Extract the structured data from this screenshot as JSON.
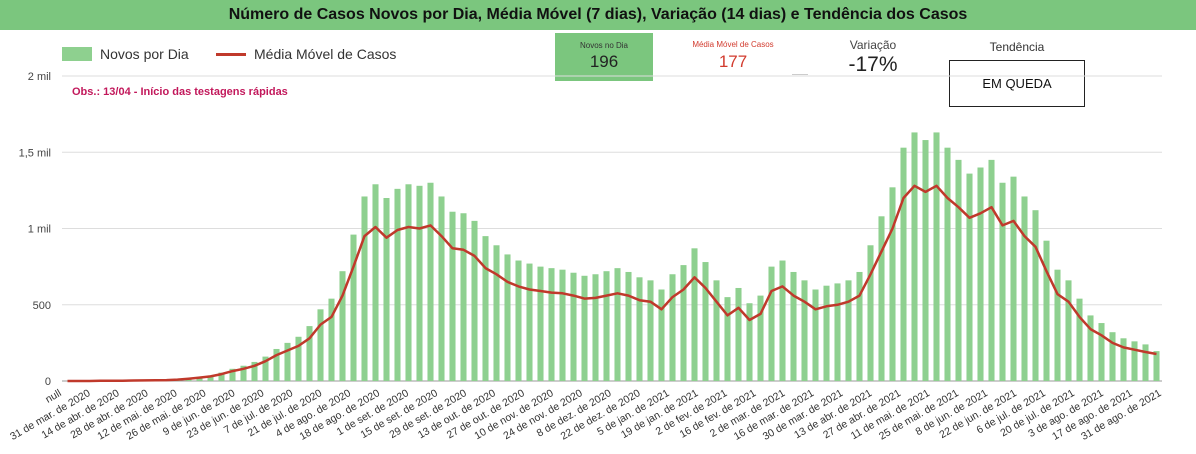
{
  "title": "Número de Casos Novos por Dia, Média Móvel (7 dias), Variação (14 dias) e Tendência dos Casos",
  "legend": {
    "bars": "Novos por Dia",
    "line": "Média Móvel de Casos"
  },
  "observation": "Obs.: 13/04 - Início das testagens rápidas",
  "kpis": {
    "novos_label": "Novos no Dia",
    "novos_value": "196",
    "media_label": "Média Móvel de Casos",
    "media_value": "177",
    "variacao_label": "Variação",
    "variacao_value": "-17%",
    "tendencia_label": "Tendência",
    "tendencia_value": "EM QUEDA"
  },
  "colors": {
    "header": "#7bc67e",
    "bars": "#8ed08f",
    "line": "#c0392b",
    "observation": "#c2185b",
    "media_kpi": "#d23b2e"
  },
  "chart_data": {
    "type": "bar",
    "ylim": [
      0,
      2000
    ],
    "y_ticks": [
      {
        "value": 0,
        "label": "0"
      },
      {
        "value": 500,
        "label": "500"
      },
      {
        "value": 1000,
        "label": "1 mil"
      },
      {
        "value": 1500,
        "label": "1,5 mil"
      },
      {
        "value": 2000,
        "label": "2 mil"
      }
    ],
    "x_tick_labels": [
      "null",
      "31 de mar. de 2020",
      "14 de abr. de 2020",
      "28 de abr. de 2020",
      "12 de mai. de 2020",
      "26 de mai. de 2020",
      "9 de jun. de 2020",
      "23 de jun. de 2020",
      "7 de jul. de 2020",
      "21 de jul. de 2020",
      "4 de ago. de 2020",
      "18 de ago. de 2020",
      "1 de set. de 2020",
      "15 de set. de 2020",
      "29 de set. de 2020",
      "13 de out. de 2020",
      "27 de out. de 2020",
      "10 de nov. de 2020",
      "24 de nov. de 2020",
      "8 de dez. de 2020",
      "22 de dez. de 2020",
      "5 de jan. de 2021",
      "19 de jan. de 2021",
      "2 de fev. de 2021",
      "16 de fev. de 2021",
      "2 de mar. de 2021",
      "16 de mar. de 2021",
      "30 de mar. de 2021",
      "13 de abr. de 2021",
      "27 de abr. de 2021",
      "11 de mai. de 2021",
      "25 de mai. de 2021",
      "8 de jun. de 2021",
      "22 de jun. de 2021",
      "6 de jul. de 2021",
      "20 de jul. de 2021",
      "3 de ago. de 2021",
      "17 de ago. de 2021",
      "31 de ago. de 2021"
    ],
    "series": [
      {
        "name": "Média Móvel de Casos",
        "type": "line",
        "values": [
          0,
          0,
          0,
          1,
          1,
          2,
          3,
          4,
          5,
          6,
          9,
          15,
          22,
          30,
          45,
          65,
          80,
          100,
          130,
          170,
          200,
          230,
          280,
          370,
          420,
          560,
          750,
          950,
          1010,
          940,
          990,
          1010,
          1000,
          1020,
          950,
          870,
          860,
          820,
          740,
          700,
          650,
          620,
          600,
          590,
          580,
          575,
          560,
          540,
          545,
          560,
          575,
          560,
          530,
          520,
          470,
          550,
          600,
          680,
          610,
          520,
          430,
          480,
          400,
          440,
          590,
          620,
          560,
          520,
          470,
          490,
          500,
          520,
          560,
          700,
          850,
          1000,
          1200,
          1280,
          1240,
          1280,
          1200,
          1140,
          1070,
          1100,
          1140,
          1020,
          1050,
          950,
          880,
          720,
          570,
          520,
          420,
          340,
          300,
          250,
          220,
          205,
          190,
          177
        ]
      },
      {
        "name": "Novos por Dia",
        "type": "bar",
        "values": [
          0,
          0,
          0,
          1,
          2,
          3,
          4,
          5,
          6,
          8,
          11,
          18,
          26,
          36,
          55,
          80,
          100,
          125,
          160,
          210,
          250,
          290,
          360,
          470,
          540,
          720,
          960,
          1210,
          1290,
          1200,
          1260,
          1290,
          1280,
          1300,
          1210,
          1110,
          1100,
          1050,
          950,
          890,
          830,
          790,
          770,
          750,
          740,
          730,
          710,
          690,
          700,
          720,
          740,
          715,
          680,
          660,
          600,
          700,
          760,
          870,
          780,
          660,
          550,
          610,
          510,
          560,
          750,
          790,
          715,
          660,
          600,
          625,
          640,
          660,
          715,
          890,
          1080,
          1270,
          1530,
          1630,
          1580,
          1630,
          1530,
          1450,
          1360,
          1400,
          1450,
          1300,
          1340,
          1210,
          1120,
          920,
          730,
          660,
          540,
          430,
          380,
          320,
          280,
          260,
          240,
          196
        ]
      }
    ]
  }
}
